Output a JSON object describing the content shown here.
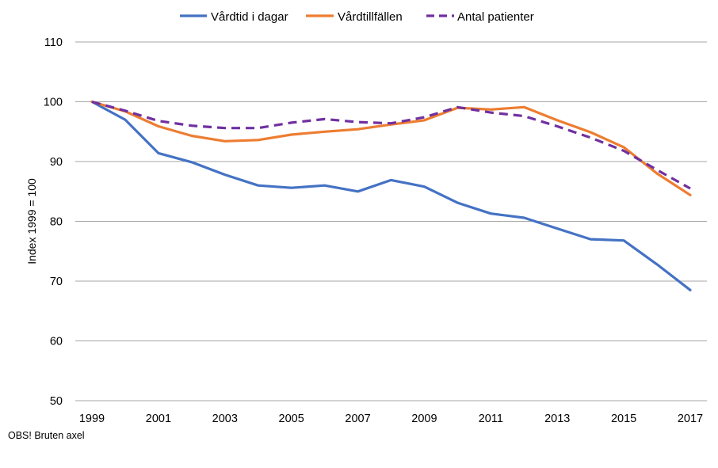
{
  "chart_data": {
    "type": "line",
    "ylabel": "Index 1999 = 100",
    "xlabel": "",
    "ylim": [
      50,
      110
    ],
    "yticks": [
      50,
      60,
      70,
      80,
      90,
      100,
      110
    ],
    "x": [
      1999,
      2000,
      2001,
      2002,
      2003,
      2004,
      2005,
      2006,
      2007,
      2008,
      2009,
      2010,
      2011,
      2012,
      2013,
      2014,
      2015,
      2016,
      2017
    ],
    "xtick_labels": [
      "1999",
      "2001",
      "2003",
      "2005",
      "2007",
      "2009",
      "2011",
      "2013",
      "2015",
      "2017"
    ],
    "grid": true,
    "legend_position": "top",
    "series": [
      {
        "name": "Vårdtid i dagar",
        "color": "#4472C4",
        "dash": "solid",
        "values": [
          100,
          97.0,
          91.4,
          89.9,
          87.8,
          86.0,
          85.6,
          86.0,
          85.0,
          86.9,
          85.8,
          83.1,
          81.3,
          80.6,
          78.8,
          77.0,
          76.8,
          72.8,
          68.5
        ]
      },
      {
        "name": "Vårdtillfällen",
        "color": "#ED7D31",
        "dash": "solid",
        "values": [
          100,
          98.4,
          95.9,
          94.3,
          93.4,
          93.6,
          94.5,
          95.0,
          95.4,
          96.2,
          96.9,
          99.0,
          98.7,
          99.1,
          96.9,
          94.9,
          92.4,
          88.0,
          84.4
        ]
      },
      {
        "name": "Antal patienter",
        "color": "#7030A0",
        "dash": "dashed",
        "values": [
          100,
          98.5,
          96.8,
          96.0,
          95.6,
          95.6,
          96.5,
          97.1,
          96.6,
          96.4,
          97.4,
          99.1,
          98.2,
          97.6,
          95.9,
          94.0,
          91.8,
          88.6,
          85.5
        ]
      }
    ]
  },
  "note": "OBS! Bruten axel"
}
